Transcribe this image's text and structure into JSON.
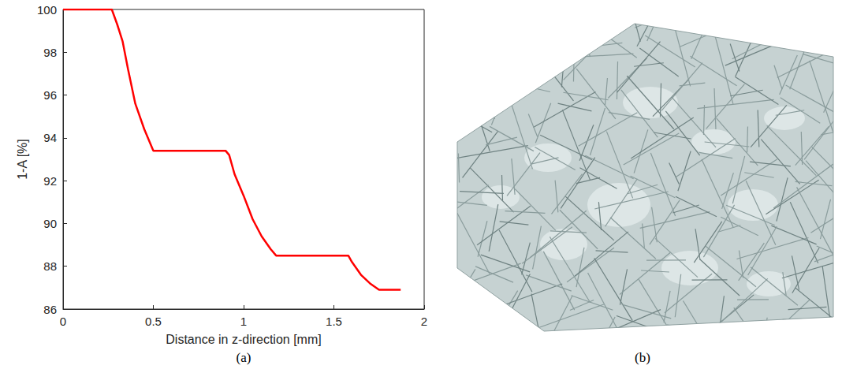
{
  "chart_data": {
    "type": "line",
    "xlabel": "Distance in z-direction [mm]",
    "ylabel": "1-A [%]",
    "caption": "(a)",
    "color": "#ff0000",
    "line_style": "solid",
    "grid": false,
    "x": [
      0,
      0.27,
      0.3,
      0.33,
      0.36,
      0.4,
      0.45,
      0.5,
      0.9,
      0.92,
      0.95,
      1.0,
      1.05,
      1.1,
      1.15,
      1.18,
      1.58,
      1.6,
      1.65,
      1.7,
      1.75,
      1.87
    ],
    "values": [
      100,
      100,
      99.3,
      98.5,
      97.2,
      95.6,
      94.4,
      93.4,
      93.4,
      93.2,
      92.3,
      91.3,
      90.2,
      89.4,
      88.8,
      88.5,
      88.5,
      88.2,
      87.6,
      87.2,
      86.9,
      86.9
    ],
    "xlim": [
      0,
      2
    ],
    "xticks": [
      0,
      0.5,
      1,
      1.5,
      2
    ],
    "ylim": [
      86,
      100
    ],
    "yticks": [
      86,
      88,
      90,
      92,
      94,
      96,
      98,
      100
    ]
  },
  "image_panel": {
    "caption": "(b)"
  }
}
